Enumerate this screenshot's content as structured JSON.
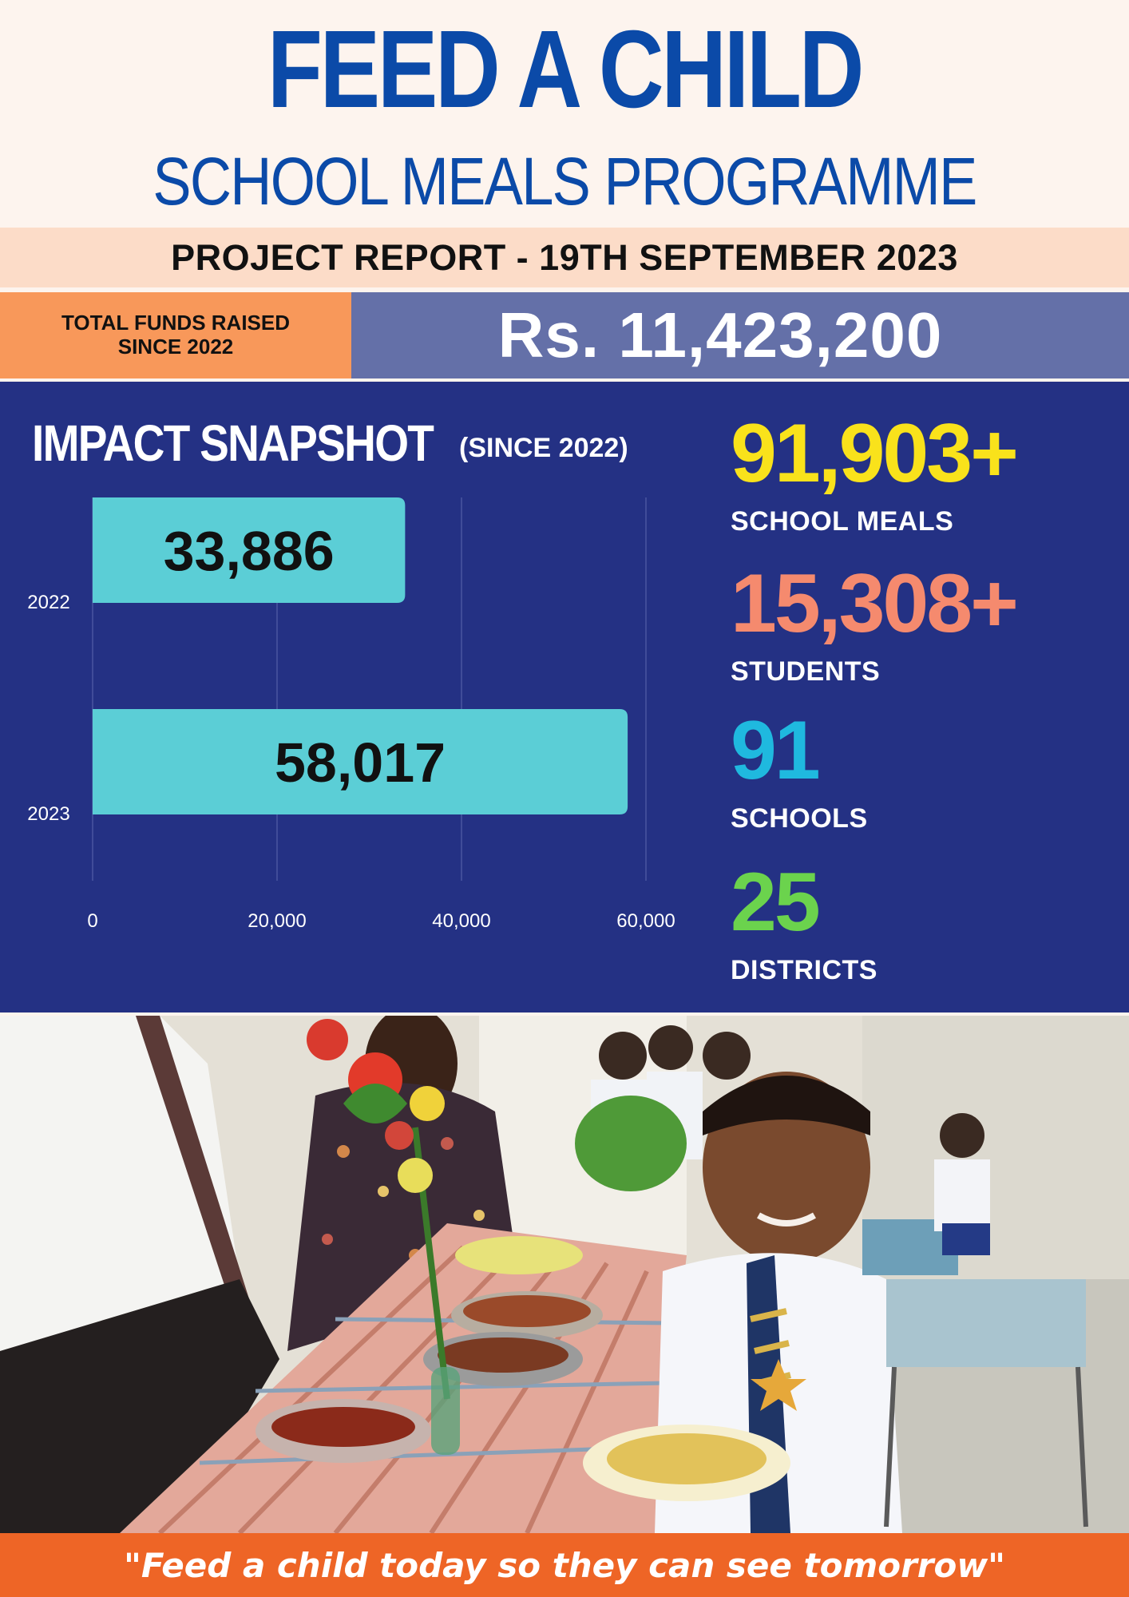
{
  "header": {
    "title": "FEED A CHILD",
    "subtitle": "SCHOOL MEALS PROGRAMME",
    "report_line": "PROJECT REPORT - 19TH SEPTEMBER 2023"
  },
  "funds": {
    "label_line1": "TOTAL FUNDS RAISED",
    "label_line2": "SINCE 2022",
    "value": "Rs. 11,423,200"
  },
  "impact": {
    "title": "IMPACT SNAPSHOT",
    "title_suffix": "(SINCE 2022)",
    "stats": [
      {
        "value": "91,903+",
        "label": "SCHOOL MEALS",
        "color": "#f9e21b"
      },
      {
        "value": "15,308+",
        "label": "STUDENTS",
        "color": "#f58a6e"
      },
      {
        "value": "91",
        "label": "SCHOOLS",
        "color": "#1fb9df"
      },
      {
        "value": "25",
        "label": "DISTRICTS",
        "color": "#6bd34d"
      }
    ]
  },
  "chart_data": {
    "type": "bar",
    "orientation": "horizontal",
    "categories": [
      "2022",
      "2023"
    ],
    "values": [
      33886,
      58017
    ],
    "value_labels": [
      "33,886",
      "58,017"
    ],
    "xlim": [
      0,
      60000
    ],
    "x_ticks": [
      0,
      20000,
      40000,
      60000
    ],
    "x_tick_labels": [
      "0",
      "20,000",
      "40,000",
      "60,000"
    ],
    "grid": true,
    "bar_color": "#5bced6"
  },
  "photo": {
    "subject": "school-meal-serving-photo"
  },
  "footer": {
    "quote": "\"Feed a child today so they can see tomorrow\""
  }
}
